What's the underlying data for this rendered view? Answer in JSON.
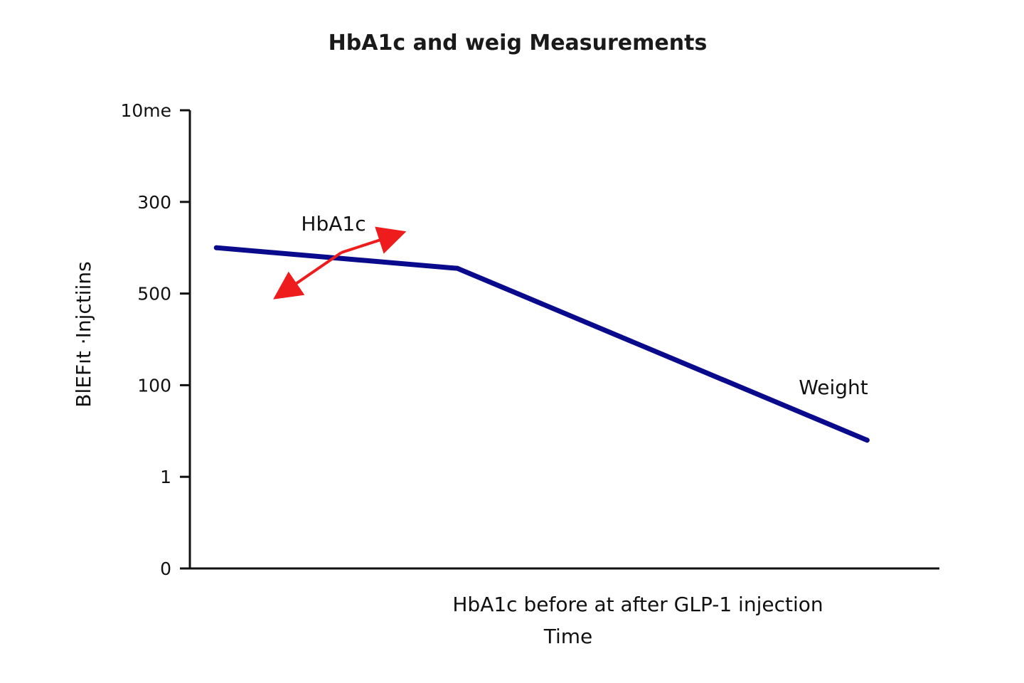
{
  "chart_data": {
    "type": "line",
    "title": "HbA1c and weig Measurements",
    "xlabel": "HbA1c before at after GLP-1 injection",
    "xlabel_secondary": "Time",
    "ylabel": "BlEFıt ·Injctiins",
    "y_tick_labels": [
      "0",
      "1",
      "100",
      "500",
      "300",
      "10me"
    ],
    "ylim": [
      0,
      6
    ],
    "grid": false,
    "x": [
      0,
      1,
      2.7
    ],
    "xlim": [
      -0.11,
      3.0
    ],
    "series": [
      {
        "name": "Weight",
        "values": [
          4.2,
          3.93,
          1.68
        ]
      }
    ],
    "annotations": [
      {
        "text": "HbA1c"
      }
    ],
    "colors": {
      "line": "#0a0a8c",
      "arrow": "#ee1c1c",
      "axis": "#111111"
    }
  }
}
